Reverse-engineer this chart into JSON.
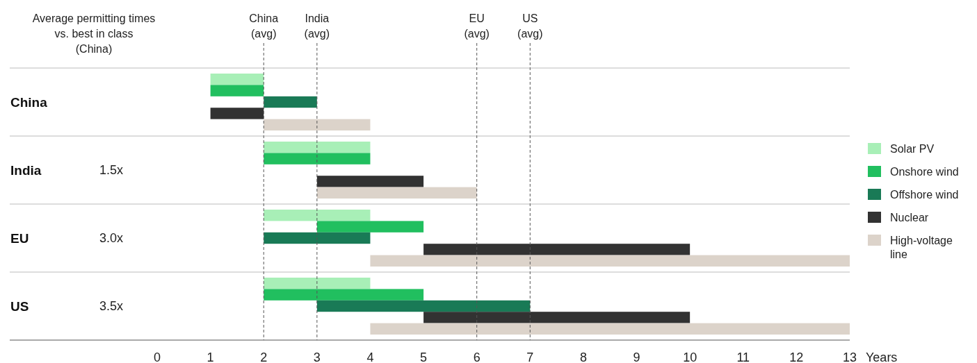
{
  "chart_data": {
    "type": "bar",
    "orientation": "horizontal",
    "categories": [
      "China",
      "India",
      "EU",
      "US"
    ],
    "series": [
      {
        "name": "Solar PV",
        "color": "#a8efb7",
        "base": [
          1,
          2,
          2,
          2
        ],
        "values": [
          1,
          2,
          2,
          2
        ]
      },
      {
        "name": "Onshore wind",
        "color": "#21bf5f",
        "base": [
          1,
          2,
          3,
          2
        ],
        "values": [
          1,
          2,
          2,
          3
        ]
      },
      {
        "name": "Offshore wind",
        "color": "#197a56",
        "base": [
          2,
          null,
          2,
          3
        ],
        "values": [
          1,
          null,
          2,
          4
        ]
      },
      {
        "name": "Nuclear",
        "color": "#323232",
        "base": [
          1,
          3,
          5,
          5
        ],
        "values": [
          1,
          2,
          5,
          5
        ]
      },
      {
        "name": "High-voltage line",
        "color": "#dcd3ca",
        "base": [
          2,
          3,
          4,
          4
        ],
        "values": [
          2,
          3,
          9,
          9
        ]
      }
    ],
    "xlim": [
      0,
      13
    ],
    "xticks": [
      0,
      1,
      2,
      3,
      4,
      5,
      6,
      7,
      8,
      9,
      10,
      11,
      12,
      13
    ],
    "xlabel": "Years",
    "ref_lines": [
      {
        "axis": "x",
        "value": 2,
        "label": "China (avg)",
        "line_style": "dashed"
      },
      {
        "axis": "x",
        "value": 3,
        "label": "India (avg)",
        "line_style": "dashed"
      },
      {
        "axis": "x",
        "value": 6,
        "label": "EU (avg)",
        "line_style": "dashed"
      },
      {
        "axis": "x",
        "value": 7,
        "label": "US (avg)",
        "line_style": "dashed"
      }
    ],
    "annotations": [
      "Average permitting times vs. best in class (China)",
      "1.5x",
      "3.0x",
      "3.5x"
    ],
    "grid": false,
    "legend": "right"
  }
}
